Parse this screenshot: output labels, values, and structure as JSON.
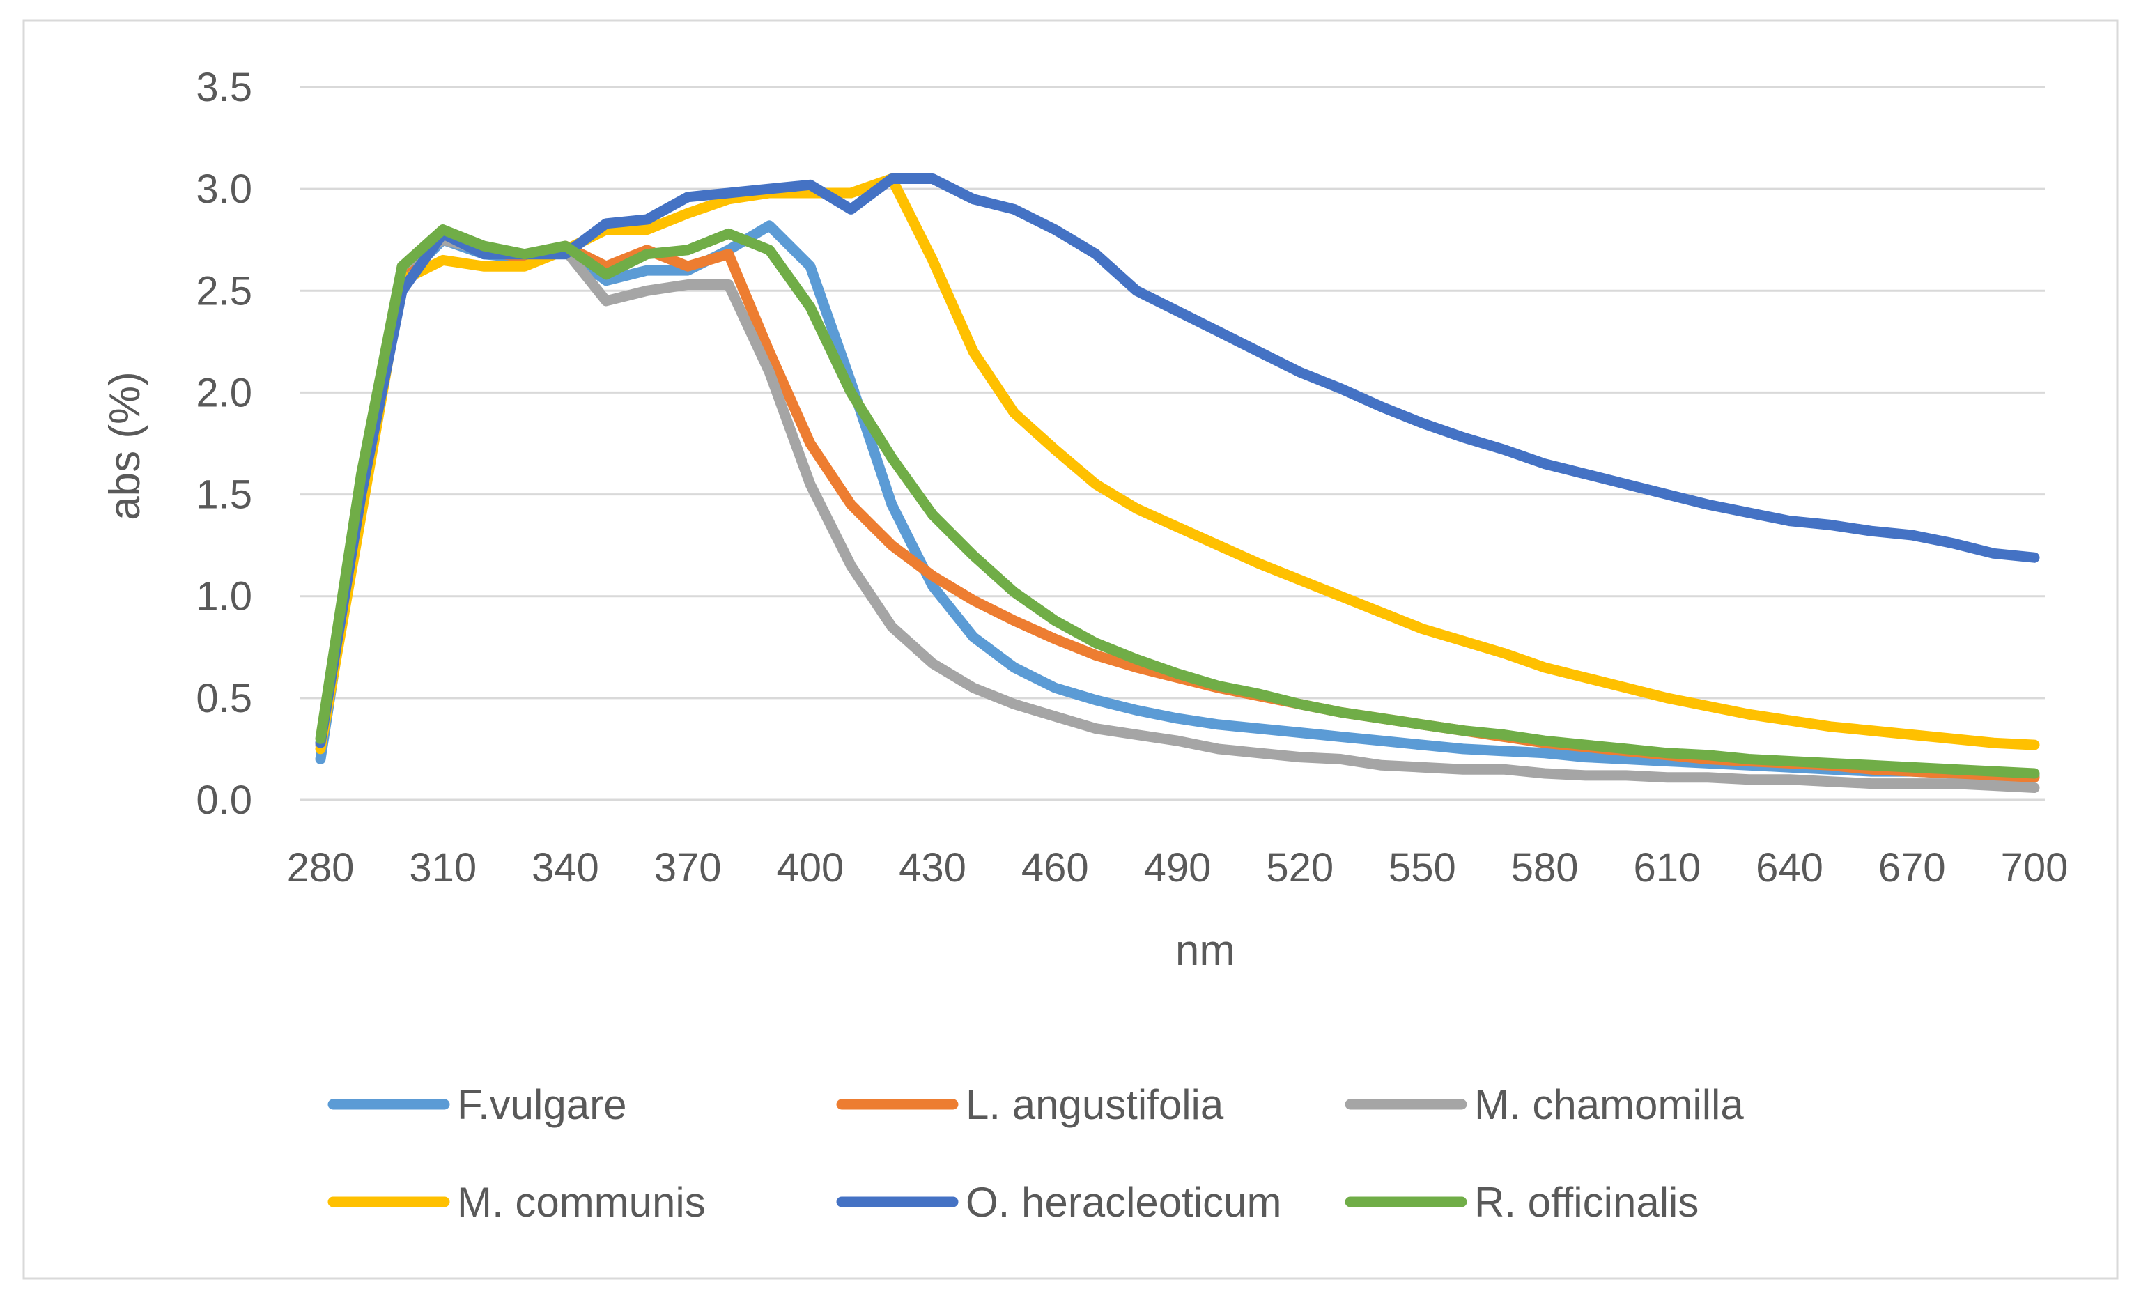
{
  "chart_data": {
    "type": "line",
    "title": "",
    "xlabel": "nm",
    "ylabel": "abs (%)",
    "xlim": [
      280,
      700
    ],
    "ylim": [
      0,
      3.5
    ],
    "grid": true,
    "legend_position": "bottom",
    "x_ticks": [
      "280",
      "310",
      "340",
      "370",
      "400",
      "430",
      "460",
      "490",
      "520",
      "550",
      "580",
      "610",
      "640",
      "670",
      "700"
    ],
    "y_ticks": [
      "0.0",
      "0.5",
      "1.0",
      "1.5",
      "2.0",
      "2.5",
      "3.0",
      "3.5"
    ],
    "x": [
      280,
      290,
      300,
      310,
      320,
      330,
      340,
      350,
      360,
      370,
      380,
      390,
      400,
      410,
      420,
      430,
      440,
      450,
      460,
      470,
      480,
      490,
      500,
      510,
      520,
      530,
      540,
      550,
      560,
      570,
      580,
      590,
      600,
      610,
      620,
      630,
      640,
      650,
      660,
      670,
      680,
      690,
      700
    ],
    "series": [
      {
        "name": "F.vulgare",
        "color": "#5B9BD5",
        "values": [
          0.2,
          1.5,
          2.55,
          2.75,
          2.68,
          2.66,
          2.7,
          2.55,
          2.6,
          2.6,
          2.7,
          2.82,
          2.62,
          2.05,
          1.45,
          1.05,
          0.8,
          0.65,
          0.55,
          0.49,
          0.44,
          0.4,
          0.37,
          0.35,
          0.33,
          0.31,
          0.29,
          0.27,
          0.25,
          0.24,
          0.23,
          0.21,
          0.2,
          0.19,
          0.18,
          0.17,
          0.16,
          0.15,
          0.14,
          0.14,
          0.13,
          0.12,
          0.12
        ]
      },
      {
        "name": "L. angustifolia",
        "color": "#ED7D31",
        "values": [
          0.27,
          1.5,
          2.6,
          2.78,
          2.7,
          2.66,
          2.72,
          2.62,
          2.7,
          2.62,
          2.68,
          2.2,
          1.75,
          1.45,
          1.25,
          1.1,
          0.98,
          0.88,
          0.79,
          0.71,
          0.65,
          0.6,
          0.55,
          0.51,
          0.47,
          0.43,
          0.4,
          0.37,
          0.34,
          0.31,
          0.28,
          0.26,
          0.24,
          0.22,
          0.2,
          0.19,
          0.18,
          0.17,
          0.15,
          0.14,
          0.13,
          0.12,
          0.11
        ]
      },
      {
        "name": "M. chamomilla",
        "color": "#A5A5A5",
        "values": [
          0.27,
          1.5,
          2.62,
          2.75,
          2.7,
          2.68,
          2.7,
          2.45,
          2.5,
          2.53,
          2.53,
          2.1,
          1.55,
          1.15,
          0.85,
          0.67,
          0.55,
          0.47,
          0.41,
          0.35,
          0.32,
          0.29,
          0.25,
          0.23,
          0.21,
          0.2,
          0.17,
          0.16,
          0.15,
          0.15,
          0.13,
          0.12,
          0.12,
          0.11,
          0.11,
          0.1,
          0.1,
          0.09,
          0.08,
          0.08,
          0.08,
          0.07,
          0.06
        ]
      },
      {
        "name": "M. communis",
        "color": "#FFC000",
        "values": [
          0.25,
          1.4,
          2.55,
          2.65,
          2.62,
          2.62,
          2.7,
          2.8,
          2.8,
          2.88,
          2.95,
          2.98,
          2.98,
          2.98,
          3.05,
          2.65,
          2.2,
          1.9,
          1.72,
          1.55,
          1.43,
          1.34,
          1.25,
          1.16,
          1.08,
          1.0,
          0.92,
          0.84,
          0.78,
          0.72,
          0.65,
          0.6,
          0.55,
          0.5,
          0.46,
          0.42,
          0.39,
          0.36,
          0.34,
          0.32,
          0.3,
          0.28,
          0.27
        ]
      },
      {
        "name": "O. heracleoticum",
        "color": "#4472C4",
        "values": [
          0.28,
          1.5,
          2.5,
          2.78,
          2.68,
          2.68,
          2.68,
          2.83,
          2.85,
          2.96,
          2.98,
          3.0,
          3.02,
          2.9,
          3.05,
          3.05,
          2.95,
          2.9,
          2.8,
          2.68,
          2.5,
          2.4,
          2.3,
          2.2,
          2.1,
          2.02,
          1.93,
          1.85,
          1.78,
          1.72,
          1.65,
          1.6,
          1.55,
          1.5,
          1.45,
          1.41,
          1.37,
          1.35,
          1.32,
          1.3,
          1.26,
          1.21,
          1.19
        ]
      },
      {
        "name": "R. officinalis",
        "color": "#70AD47",
        "values": [
          0.3,
          1.6,
          2.62,
          2.8,
          2.72,
          2.68,
          2.72,
          2.58,
          2.68,
          2.7,
          2.78,
          2.7,
          2.42,
          2.0,
          1.68,
          1.4,
          1.2,
          1.02,
          0.88,
          0.77,
          0.69,
          0.62,
          0.56,
          0.52,
          0.47,
          0.43,
          0.4,
          0.37,
          0.34,
          0.32,
          0.29,
          0.27,
          0.25,
          0.23,
          0.22,
          0.2,
          0.19,
          0.18,
          0.17,
          0.16,
          0.15,
          0.14,
          0.13
        ]
      }
    ]
  }
}
